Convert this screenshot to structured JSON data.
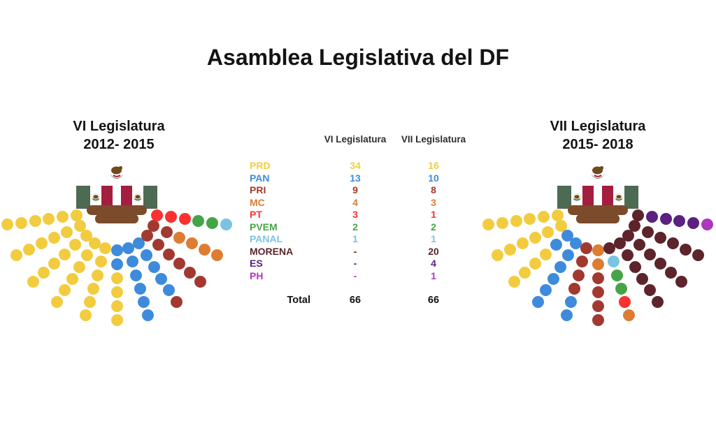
{
  "title": "Asamblea Legislativa del DF",
  "table": {
    "header_vi": "VI Legislatura",
    "header_vii": "VII Legislatura",
    "total_label": "Total",
    "total_vi": "66",
    "total_vii": "66",
    "empty_cell": "-"
  },
  "chart_data": {
    "type": "parliament",
    "layout": "fan of 11 rays x 6 seats radiating from a podium, one hemicycle per legislature",
    "diagrams": [
      {
        "id": "vi",
        "title": "VI Legislatura",
        "subtitle": "2012- 2015",
        "total": 66
      },
      {
        "id": "vii",
        "title": "VII Legislatura",
        "subtitle": "2015- 2018",
        "total": 66
      }
    ],
    "parties": [
      {
        "name": "PRD",
        "color": "#F2CC3F",
        "vi": 34,
        "vii": 16
      },
      {
        "name": "PAN",
        "color": "#3E8BDC",
        "vi": 13,
        "vii": 10
      },
      {
        "name": "PRI",
        "color": "#A23931",
        "vi": 9,
        "vii": 8
      },
      {
        "name": "MC",
        "color": "#DC7D33",
        "vi": 4,
        "vii": 3
      },
      {
        "name": "PT",
        "color": "#FB3030",
        "vi": 3,
        "vii": 1
      },
      {
        "name": "PVEM",
        "color": "#45A546",
        "vi": 2,
        "vii": 2
      },
      {
        "name": "PANAL",
        "color": "#7BC3E3",
        "vi": 1,
        "vii": 1
      },
      {
        "name": "MORENA",
        "color": "#5D242B",
        "vi": 0,
        "vii": 20
      },
      {
        "name": "ES",
        "color": "#5C2080",
        "vi": 0,
        "vii": 4
      },
      {
        "name": "PH",
        "color": "#AC39BC",
        "vi": 0,
        "vii": 1
      }
    ]
  }
}
